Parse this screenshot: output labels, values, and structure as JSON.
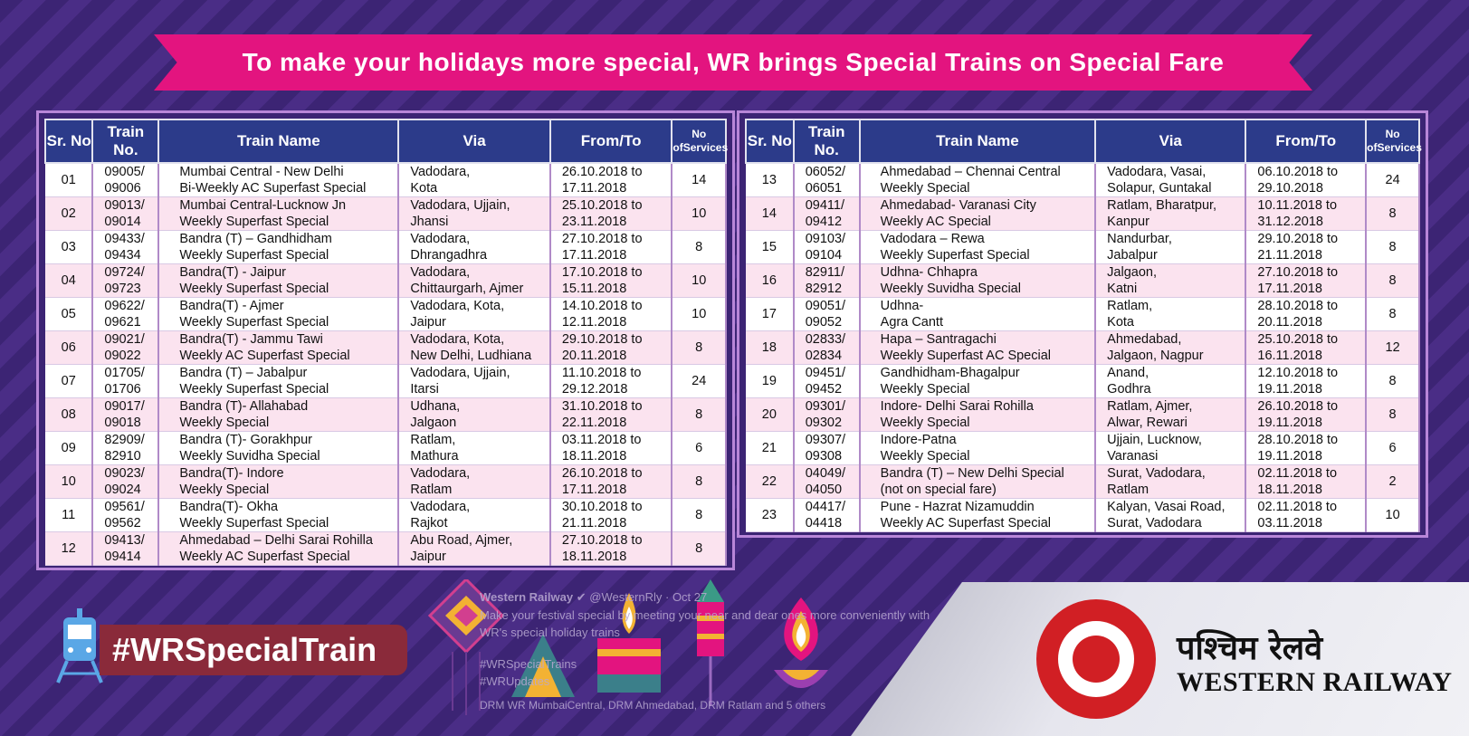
{
  "banner": {
    "text": "To make your holidays more special, WR brings Special Trains on Special Fare"
  },
  "headers": {
    "sr": "Sr. No",
    "train_no": "Train No.",
    "train_name": "Train Name",
    "via": "Via",
    "from_to": "From/To",
    "services_1": "No of",
    "services_2": "Services"
  },
  "left_rows": [
    {
      "sr": "01",
      "no1": "09005/",
      "no2": "09006",
      "name1": "Mumbai Central - New Delhi",
      "name2": "Bi-Weekly  AC Superfast Special",
      "via1": "Vadodara,",
      "via2": "Kota",
      "d1": "26.10.2018 to",
      "d2": "17.11.2018",
      "svc": "14"
    },
    {
      "sr": "02",
      "no1": "09013/",
      "no2": "09014",
      "name1": "Mumbai Central-Lucknow Jn",
      "name2": "Weekly Superfast  Special",
      "via1": "Vadodara, Ujjain,",
      "via2": "Jhansi",
      "d1": "25.10.2018 to",
      "d2": "23.11.2018",
      "svc": "10"
    },
    {
      "sr": "03",
      "no1": "09433/",
      "no2": "09434",
      "name1": "Bandra (T) – Gandhidham",
      "name2": "Weekly Superfast Special",
      "via1": "Vadodara,",
      "via2": "Dhrangadhra",
      "d1": "27.10.2018 to",
      "d2": "17.11.2018",
      "svc": "8"
    },
    {
      "sr": "04",
      "no1": "09724/",
      "no2": "09723",
      "name1": "Bandra(T) - Jaipur",
      "name2": "Weekly Superfast Special",
      "via1": "Vadodara,",
      "via2": "Chittaurgarh, Ajmer",
      "d1": "17.10.2018 to",
      "d2": "15.11.2018",
      "svc": "10"
    },
    {
      "sr": "05",
      "no1": "09622/",
      "no2": "09621",
      "name1": "Bandra(T) - Ajmer",
      "name2": "Weekly Superfast Special",
      "via1": "Vadodara, Kota,",
      "via2": "Jaipur",
      "d1": "14.10.2018 to",
      "d2": "12.11.2018",
      "svc": "10"
    },
    {
      "sr": "06",
      "no1": "09021/",
      "no2": "09022",
      "name1": "Bandra(T) - Jammu Tawi",
      "name2": "Weekly AC Superfast Special",
      "via1": "Vadodara, Kota,",
      "via2": "New Delhi, Ludhiana",
      "d1": "29.10.2018 to",
      "d2": "20.11.2018",
      "svc": "8"
    },
    {
      "sr": "07",
      "no1": "01705/",
      "no2": "01706",
      "name1": "Bandra (T) – Jabalpur",
      "name2": "Weekly Superfast Special",
      "via1": "Vadodara, Ujjain,",
      "via2": "Itarsi",
      "d1": "11.10.2018 to",
      "d2": "29.12.2018",
      "svc": "24"
    },
    {
      "sr": "08",
      "no1": "09017/",
      "no2": "09018",
      "name1": "Bandra (T)- Allahabad",
      "name2": "Weekly Special",
      "via1": "Udhana,",
      "via2": "Jalgaon",
      "d1": "31.10.2018 to",
      "d2": "22.11.2018",
      "svc": "8"
    },
    {
      "sr": "09",
      "no1": "82909/",
      "no2": "82910",
      "name1": "Bandra (T)- Gorakhpur",
      "name2": "Weekly Suvidha Special",
      "via1": "Ratlam,",
      "via2": "Mathura",
      "d1": "03.11.2018 to",
      "d2": "18.11.2018",
      "svc": "6"
    },
    {
      "sr": "10",
      "no1": "09023/",
      "no2": "09024",
      "name1": "Bandra(T)- Indore",
      "name2": "Weekly Special",
      "via1": "Vadodara,",
      "via2": "Ratlam",
      "d1": "26.10.2018 to",
      "d2": "17.11.2018",
      "svc": "8"
    },
    {
      "sr": "11",
      "no1": "09561/",
      "no2": "09562",
      "name1": "Bandra(T)- Okha",
      "name2": "Weekly Superfast Special",
      "via1": "Vadodara,",
      "via2": "Rajkot",
      "d1": "30.10.2018 to",
      "d2": "21.11.2018",
      "svc": "8"
    },
    {
      "sr": "12",
      "no1": "09413/",
      "no2": "09414",
      "name1": "Ahmedabad – Delhi Sarai Rohilla",
      "name2": "Weekly AC Superfast Special",
      "via1": "Abu Road, Ajmer,",
      "via2": "Jaipur",
      "d1": "27.10.2018 to",
      "d2": "18.11.2018",
      "svc": "8"
    }
  ],
  "right_rows": [
    {
      "sr": "13",
      "no1": "06052/",
      "no2": "06051",
      "name1": "Ahmedabad – Chennai Central",
      "name2": "Weekly Special",
      "via1": "Vadodara, Vasai,",
      "via2": "Solapur, Guntakal",
      "d1": "06.10.2018 to",
      "d2": "29.10.2018",
      "svc": "24"
    },
    {
      "sr": "14",
      "no1": "09411/",
      "no2": "09412",
      "name1": "Ahmedabad- Varanasi City",
      "name2": "Weekly AC Special",
      "via1": "Ratlam, Bharatpur,",
      "via2": "Kanpur",
      "d1": "10.11.2018 to",
      "d2": "31.12.2018",
      "svc": "8"
    },
    {
      "sr": "15",
      "no1": "09103/",
      "no2": "09104",
      "name1": "Vadodara – Rewa",
      "name2": "Weekly Superfast Special",
      "via1": "Nandurbar,",
      "via2": "Jabalpur",
      "d1": "29.10.2018 to",
      "d2": "21.11.2018",
      "svc": "8"
    },
    {
      "sr": "16",
      "no1": "82911/",
      "no2": "82912",
      "name1": "Udhna- Chhapra",
      "name2": "Weekly Suvidha Special",
      "via1": "Jalgaon,",
      "via2": "Katni",
      "d1": "27.10.2018 to",
      "d2": "17.11.2018",
      "svc": "8"
    },
    {
      "sr": "17",
      "no1": "09051/",
      "no2": "09052",
      "name1": "Udhna-",
      "name2": "Agra Cantt",
      "via1": "Ratlam,",
      "via2": "Kota",
      "d1": "28.10.2018 to",
      "d2": "20.11.2018",
      "svc": "8"
    },
    {
      "sr": "18",
      "no1": "02833/",
      "no2": "02834",
      "name1": "Hapa – Santragachi",
      "name2": "Weekly Superfast AC Special",
      "via1": "Ahmedabad,",
      "via2": "Jalgaon, Nagpur",
      "d1": "25.10.2018 to",
      "d2": "16.11.2018",
      "svc": "12"
    },
    {
      "sr": "19",
      "no1": "09451/",
      "no2": "09452",
      "name1": "Gandhidham-Bhagalpur",
      "name2": "Weekly Special",
      "via1": "Anand,",
      "via2": "Godhra",
      "d1": "12.10.2018 to",
      "d2": "19.11.2018",
      "svc": "8"
    },
    {
      "sr": "20",
      "no1": "09301/",
      "no2": "09302",
      "name1": "Indore- Delhi Sarai Rohilla",
      "name2": "Weekly Special",
      "via1": "Ratlam, Ajmer,",
      "via2": "Alwar, Rewari",
      "d1": "26.10.2018 to",
      "d2": "19.11.2018",
      "svc": "8"
    },
    {
      "sr": "21",
      "no1": "09307/",
      "no2": "09308",
      "name1": "Indore-Patna",
      "name2": "Weekly Special",
      "via1": "Ujjain, Lucknow,",
      "via2": "Varanasi",
      "d1": "28.10.2018 to",
      "d2": "19.11.2018",
      "svc": "6"
    },
    {
      "sr": "22",
      "no1": "04049/",
      "no2": "04050",
      "name1": "Bandra (T) – New Delhi Special",
      "name2": "(not on special fare)",
      "via1": "Surat, Vadodara,",
      "via2": "Ratlam",
      "d1": "02.11.2018 to",
      "d2": "18.11.2018",
      "svc": "2"
    },
    {
      "sr": "23",
      "no1": "04417/",
      "no2": "04418",
      "name1": "Pune - Hazrat Nizamuddin",
      "name2": "Weekly AC Superfast Special",
      "via1": "Kalyan, Vasai Road,",
      "via2": "Surat,  Vadodara",
      "d1": "02.11.2018 to",
      "d2": "03.11.2018",
      "svc": "10"
    }
  ],
  "hashtag": "#WRSpecialTrain",
  "tweet": {
    "name": "Western Railway",
    "handle": "@WesternRly · Oct 27",
    "line1": "Make your festival special by meeting your near and dear ones more conveniently with",
    "line2": "WR's special holiday trains",
    "tag1": "#WRSpecialTrains",
    "tag2": "#WRUpdates",
    "mentions": "DRM WR MumbaiCentral, DRM Ahmedabad, DRM Ratlam and 5 others"
  },
  "logo": {
    "hindi": "पश्चिम रेलवे",
    "english": "WESTERN RAILWAY"
  },
  "colors": {
    "banner": "#e3147f",
    "header": "#2c3b8a",
    "background": "#3c2474",
    "logo_red": "#d11f24"
  },
  "icons": [
    "train-icon",
    "lantern-icon",
    "diya-icon",
    "rocket-firework-icon",
    "lamp-icon",
    "indian-railways-logo"
  ]
}
